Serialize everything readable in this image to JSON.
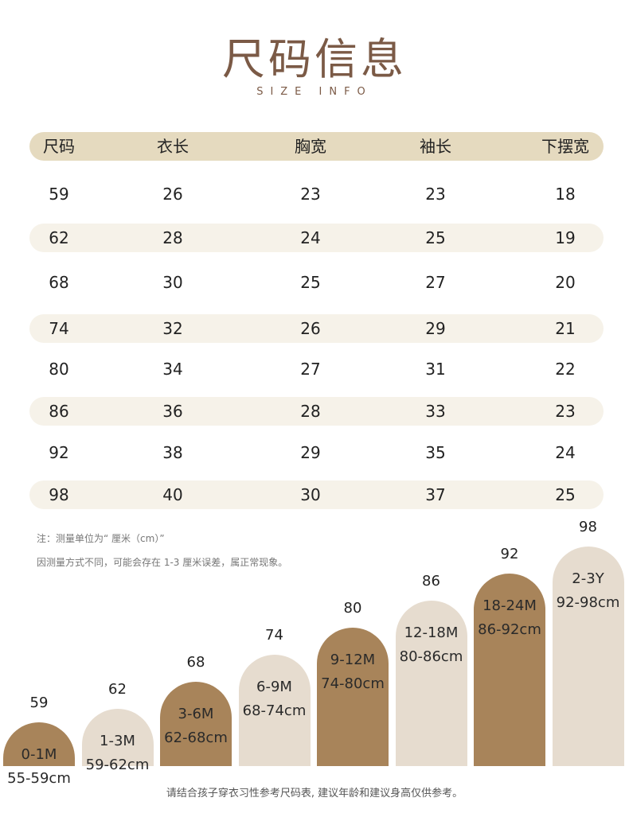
{
  "title": "尺码信息",
  "subtitle": "SIZE INFO",
  "table": {
    "headers": [
      "尺码",
      "衣长",
      "胸宽",
      "袖长",
      "下摆宽"
    ],
    "rows": [
      [
        "59",
        "26",
        "23",
        "23",
        "18"
      ],
      [
        "62",
        "28",
        "24",
        "25",
        "19"
      ],
      [
        "68",
        "30",
        "25",
        "27",
        "20"
      ],
      [
        "74",
        "32",
        "26",
        "29",
        "21"
      ],
      [
        "80",
        "34",
        "27",
        "31",
        "22"
      ],
      [
        "86",
        "36",
        "28",
        "33",
        "23"
      ],
      [
        "92",
        "38",
        "29",
        "35",
        "24"
      ],
      [
        "98",
        "40",
        "30",
        "37",
        "25"
      ]
    ]
  },
  "notes": [
    "注：测量单位为“ 厘米（cm）”",
    "因测量方式不同，可能会存在 1-3 厘米误差，属正常现象。"
  ],
  "size_guide": [
    {
      "size": "59",
      "age": "0-1M",
      "height": "55-59cm",
      "color": "dark"
    },
    {
      "size": "62",
      "age": "1-3M",
      "height": "59-62cm",
      "color": "light"
    },
    {
      "size": "68",
      "age": "3-6M",
      "height": "62-68cm",
      "color": "dark"
    },
    {
      "size": "74",
      "age": "6-9M",
      "height": "68-74cm",
      "color": "light"
    },
    {
      "size": "80",
      "age": "9-12M",
      "height": "74-80cm",
      "color": "dark"
    },
    {
      "size": "86",
      "age": "12-18M",
      "height": "80-86cm",
      "color": "light"
    },
    {
      "size": "92",
      "age": "18-24M",
      "height": "86-92cm",
      "color": "dark"
    },
    {
      "size": "98",
      "age": "2-3Y",
      "height": "92-98cm",
      "color": "light"
    }
  ],
  "colors": {
    "header": "#e5dabf",
    "stripe": "#f6f2e9",
    "dark": "#a8845a",
    "light": "#e6dccf",
    "title": "#7b5a46"
  },
  "footer": "请结合孩子穿衣习性参考尺码表, 建议年龄和建议身高仅供参考。"
}
